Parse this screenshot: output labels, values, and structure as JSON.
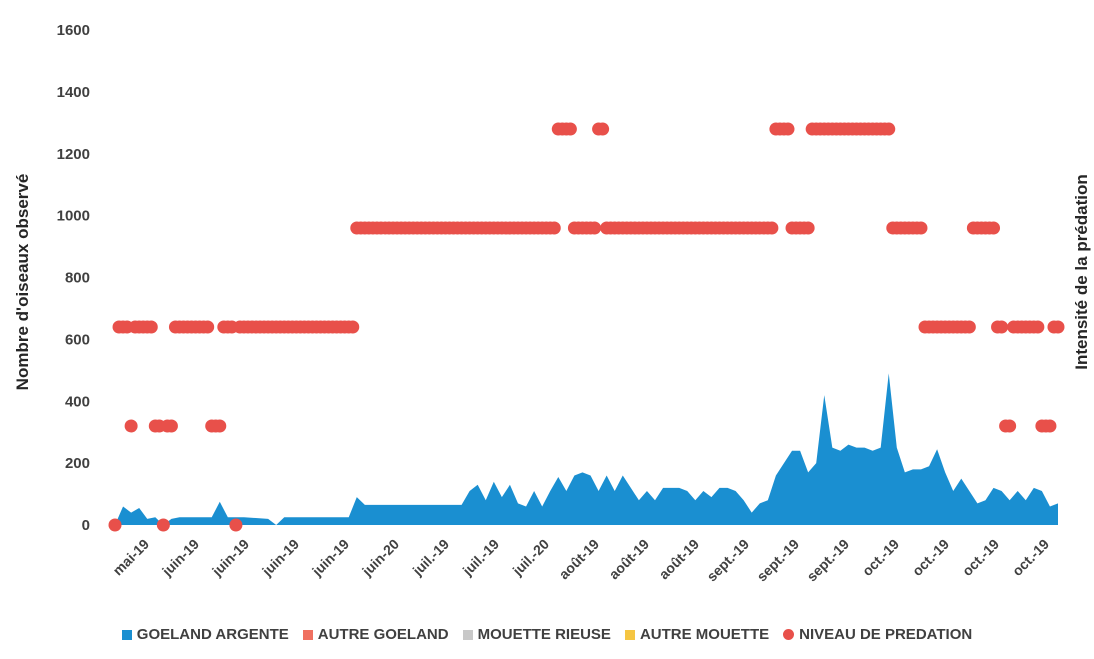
{
  "chart_data": {
    "type": "area",
    "ylabel_left": "Nombre d'oiseaux observé",
    "ylabel_right": "Intensité de la prédation",
    "ylim": [
      0,
      1600
    ],
    "yticks": [
      "0",
      "200",
      "400",
      "600",
      "800",
      "1000",
      "1200",
      "1400",
      "1600"
    ],
    "xticks": [
      "mai-19",
      "juin-19",
      "juin-19",
      "juin-19",
      "juin-19",
      "juin-20",
      "juil.-19",
      "juil.-19",
      "juil.-20",
      "août-19",
      "août-19",
      "août-19",
      "sept.-19",
      "sept.-19",
      "sept.-19",
      "oct.-19",
      "oct.-19",
      "oct.-19",
      "oct.-19"
    ],
    "legend": [
      {
        "name": "GOELAND ARGENTE",
        "color": "#1a8fd1",
        "marker": "square"
      },
      {
        "name": "AUTRE GOELAND",
        "color": "#f07060",
        "marker": "square"
      },
      {
        "name": "MOUETTE RIEUSE",
        "color": "#c8c8c8",
        "marker": "square"
      },
      {
        "name": "AUTRE MOUETTE",
        "color": "#f5c542",
        "marker": "square"
      },
      {
        "name": "NIVEAU DE PREDATION",
        "color": "#e8504a",
        "marker": "circle"
      }
    ],
    "series": [
      {
        "name": "GOELAND ARGENTE",
        "kind": "area",
        "color": "#1a8fd1",
        "points": [
          [
            0,
            0
          ],
          [
            2,
            60
          ],
          [
            4,
            40
          ],
          [
            6,
            55
          ],
          [
            8,
            20
          ],
          [
            10,
            25
          ],
          [
            12,
            0
          ],
          [
            14,
            20
          ],
          [
            16,
            25
          ],
          [
            20,
            25
          ],
          [
            24,
            25
          ],
          [
            26,
            75
          ],
          [
            28,
            25
          ],
          [
            32,
            25
          ],
          [
            38,
            20
          ],
          [
            40,
            0
          ],
          [
            42,
            25
          ],
          [
            50,
            25
          ],
          [
            58,
            25
          ],
          [
            60,
            90
          ],
          [
            62,
            65
          ],
          [
            70,
            65
          ],
          [
            78,
            65
          ],
          [
            86,
            65
          ],
          [
            88,
            110
          ],
          [
            90,
            130
          ],
          [
            92,
            80
          ],
          [
            94,
            140
          ],
          [
            96,
            90
          ],
          [
            98,
            130
          ],
          [
            100,
            70
          ],
          [
            102,
            60
          ],
          [
            104,
            110
          ],
          [
            106,
            60
          ],
          [
            108,
            110
          ],
          [
            110,
            155
          ],
          [
            112,
            110
          ],
          [
            114,
            160
          ],
          [
            116,
            170
          ],
          [
            118,
            160
          ],
          [
            120,
            110
          ],
          [
            122,
            160
          ],
          [
            124,
            110
          ],
          [
            126,
            160
          ],
          [
            128,
            120
          ],
          [
            130,
            80
          ],
          [
            132,
            110
          ],
          [
            134,
            80
          ],
          [
            136,
            120
          ],
          [
            138,
            120
          ],
          [
            140,
            120
          ],
          [
            142,
            110
          ],
          [
            144,
            80
          ],
          [
            146,
            110
          ],
          [
            148,
            90
          ],
          [
            150,
            120
          ],
          [
            152,
            120
          ],
          [
            154,
            110
          ],
          [
            156,
            80
          ],
          [
            158,
            40
          ],
          [
            160,
            70
          ],
          [
            162,
            80
          ],
          [
            164,
            160
          ],
          [
            166,
            200
          ],
          [
            168,
            240
          ],
          [
            170,
            240
          ],
          [
            172,
            170
          ],
          [
            174,
            200
          ],
          [
            176,
            420
          ],
          [
            178,
            250
          ],
          [
            180,
            240
          ],
          [
            182,
            260
          ],
          [
            184,
            250
          ],
          [
            186,
            250
          ],
          [
            188,
            240
          ],
          [
            190,
            250
          ],
          [
            192,
            490
          ],
          [
            194,
            250
          ],
          [
            196,
            170
          ],
          [
            198,
            180
          ],
          [
            200,
            180
          ],
          [
            202,
            190
          ],
          [
            204,
            245
          ],
          [
            206,
            170
          ],
          [
            208,
            110
          ],
          [
            210,
            150
          ],
          [
            212,
            110
          ],
          [
            214,
            70
          ],
          [
            216,
            80
          ],
          [
            218,
            120
          ],
          [
            220,
            110
          ],
          [
            222,
            80
          ],
          [
            224,
            110
          ],
          [
            226,
            80
          ],
          [
            228,
            120
          ],
          [
            230,
            110
          ],
          [
            232,
            60
          ],
          [
            234,
            70
          ]
        ]
      }
    ],
    "predation_levels": {
      "x": [
        0,
        1,
        2,
        3,
        4,
        5,
        6,
        7,
        8,
        9,
        10,
        11,
        12,
        13,
        14,
        15,
        16,
        17,
        18,
        19,
        20,
        21,
        22,
        23,
        24,
        25,
        26,
        27,
        28,
        29,
        30,
        31,
        32,
        33,
        34,
        35,
        36,
        37,
        38,
        39,
        40,
        41,
        42,
        43,
        44,
        45,
        46,
        47,
        48,
        49,
        50,
        51,
        52,
        53,
        54,
        55,
        56,
        57,
        58,
        59,
        60,
        61,
        62,
        63,
        64,
        65,
        66,
        67,
        68,
        69,
        70,
        71,
        72,
        73,
        74,
        75,
        76,
        77,
        78,
        79,
        80,
        81,
        82,
        83,
        84,
        85,
        86,
        87,
        88,
        89,
        90,
        91,
        92,
        93,
        94,
        95,
        96,
        97,
        98,
        99,
        100,
        101,
        102,
        103,
        104,
        105,
        106,
        107,
        108,
        109,
        110,
        111,
        112,
        113,
        114,
        115,
        116,
        117,
        118,
        119,
        120,
        121,
        122,
        123,
        124,
        125,
        126,
        127,
        128,
        129,
        130,
        131,
        132,
        133,
        134,
        135,
        136,
        137,
        138,
        139,
        140,
        141,
        142,
        143,
        144,
        145,
        146,
        147,
        148,
        149,
        150,
        151,
        152,
        153,
        154,
        155,
        156,
        157,
        158,
        159,
        160,
        161,
        162,
        163,
        164,
        165,
        166,
        167,
        168,
        169,
        170,
        171,
        172,
        173,
        174,
        175,
        176,
        177,
        178,
        179,
        180,
        181,
        182,
        183,
        184,
        185,
        186,
        187,
        188,
        189,
        190,
        191,
        192,
        193,
        194,
        195,
        196,
        197,
        198,
        199,
        200,
        201,
        202,
        203,
        204,
        205,
        206,
        207,
        208,
        209,
        210,
        211,
        212,
        213,
        214,
        215,
        216,
        217,
        218,
        219,
        220,
        221,
        222,
        223,
        224,
        225,
        226,
        227,
        228,
        229,
        230,
        231,
        232,
        233,
        234
      ],
      "level": [
        0,
        2,
        2,
        2,
        1,
        2,
        2,
        2,
        2,
        2,
        1,
        1,
        0,
        1,
        1,
        2,
        2,
        2,
        2,
        2,
        2,
        2,
        2,
        2,
        1,
        1,
        1,
        2,
        2,
        2,
        0,
        2,
        2,
        2,
        2,
        2,
        2,
        2,
        2,
        2,
        2,
        2,
        2,
        2,
        2,
        2,
        2,
        2,
        2,
        2,
        2,
        2,
        2,
        2,
        2,
        2,
        2,
        2,
        2,
        2,
        3,
        3,
        3,
        3,
        3,
        3,
        3,
        3,
        3,
        3,
        3,
        3,
        3,
        3,
        3,
        3,
        3,
        3,
        3,
        3,
        3,
        3,
        3,
        3,
        3,
        3,
        3,
        3,
        3,
        3,
        3,
        3,
        3,
        3,
        3,
        3,
        3,
        3,
        3,
        3,
        3,
        3,
        3,
        3,
        3,
        3,
        3,
        3,
        3,
        3,
        4,
        4,
        4,
        4,
        3,
        3,
        3,
        3,
        3,
        3,
        4,
        4,
        3,
        3,
        3,
        3,
        3,
        3,
        3,
        3,
        3,
        3,
        3,
        3,
        3,
        3,
        3,
        3,
        3,
        3,
        3,
        3,
        3,
        3,
        3,
        3,
        3,
        3,
        3,
        3,
        3,
        3,
        3,
        3,
        3,
        3,
        3,
        3,
        3,
        3,
        3,
        3,
        3,
        3,
        4,
        4,
        4,
        4,
        3,
        3,
        3,
        3,
        3,
        4,
        4,
        4,
        4,
        4,
        4,
        4,
        4,
        4,
        4,
        4,
        4,
        4,
        4,
        4,
        4,
        4,
        4,
        4,
        4,
        3,
        3,
        3,
        3,
        3,
        3,
        3,
        3,
        2,
        2,
        2,
        2,
        2,
        2,
        2,
        2,
        2,
        2,
        2,
        2,
        3,
        3,
        3,
        3,
        3,
        3,
        2,
        2,
        1,
        1,
        2,
        2,
        2,
        2,
        2,
        2,
        2,
        1,
        1,
        1,
        2,
        2,
        2,
        2
      ],
      "level_to_count": {
        "0": 0,
        "1": 320,
        "2": 640,
        "3": 960,
        "4": 1280
      }
    }
  }
}
